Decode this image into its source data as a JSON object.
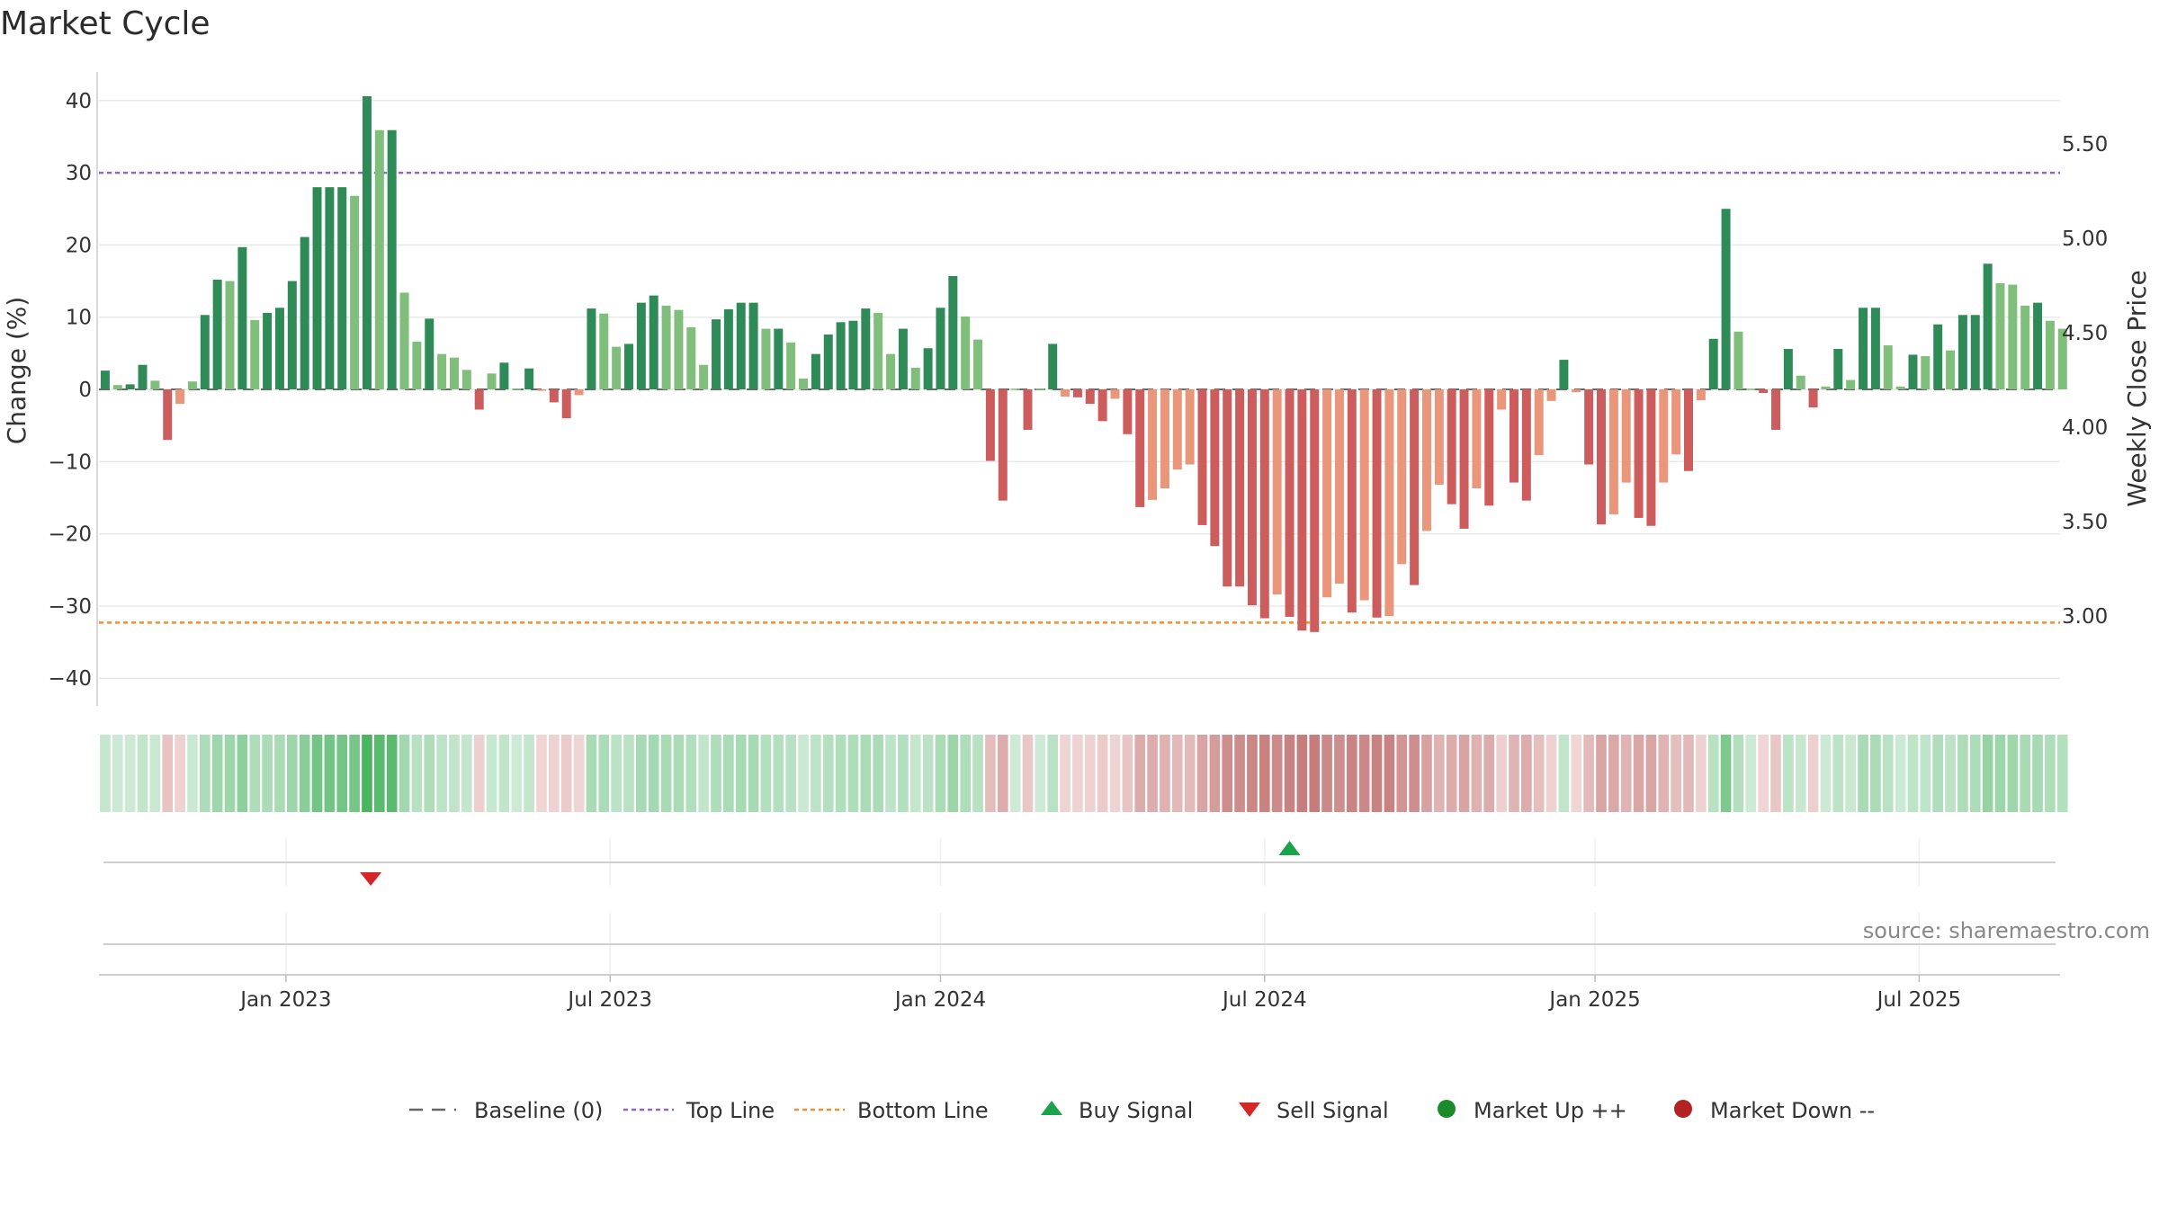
{
  "page": {
    "title": "Market Cycle",
    "source": "source: sharemaestro.com"
  },
  "chart_data": {
    "type": "bar",
    "title": "Market Cycle",
    "ylabel": "Change (%)",
    "y2label": "Weekly Close Price",
    "ylim": [
      -44,
      44
    ],
    "y_ticks": [
      40,
      30,
      20,
      10,
      0,
      -10,
      -20,
      -30,
      -40
    ],
    "y_tick_labels": [
      "40",
      "30",
      "20",
      "10",
      "0",
      "−10",
      "−20",
      "−30",
      "−40"
    ],
    "y2_ticks": [
      5.5,
      5.0,
      4.5,
      4.0,
      3.5,
      3.0
    ],
    "y2_tick_labels": [
      "5.50",
      "5.00",
      "4.50",
      "4.00",
      "3.50",
      "3.00"
    ],
    "top_line": 30,
    "bottom_line": -32.3,
    "x_start_week_offset": 0,
    "x_tick_labels": [
      "Jan 2023",
      "Jul 2023",
      "Jan 2024",
      "Jul 2024",
      "Jan 2025",
      "Jul 2025"
    ],
    "x_tick_weeks": [
      15,
      41,
      67.5,
      93.5,
      120,
      146
    ],
    "x_range_weeks": [
      0,
      157.3
    ],
    "values": [
      2.6,
      0.6,
      0.7,
      3.4,
      1.2,
      -7.0,
      -2.0,
      1.1,
      10.3,
      15.2,
      15.0,
      19.7,
      9.6,
      10.6,
      11.3,
      15.0,
      21.1,
      28.0,
      28.0,
      28.0,
      26.8,
      40.6,
      35.9,
      35.9,
      13.4,
      6.6,
      9.8,
      4.9,
      4.4,
      2.7,
      -2.8,
      2.2,
      3.7,
      0.1,
      2.9,
      -0.2,
      -1.8,
      -4.0,
      -0.8,
      11.2,
      10.5,
      5.9,
      6.3,
      12.0,
      13.0,
      11.6,
      11.0,
      8.6,
      3.4,
      9.7,
      11.1,
      12.0,
      12.0,
      8.4,
      8.4,
      6.5,
      1.5,
      4.9,
      7.6,
      9.3,
      9.5,
      11.2,
      10.6,
      4.9,
      8.4,
      3.0,
      5.7,
      11.3,
      15.7,
      10.1,
      6.9,
      -9.9,
      -15.4,
      0.1,
      -5.6,
      0.1,
      6.3,
      -1.0,
      -1.1,
      -2.0,
      -4.4,
      -1.3,
      -6.2,
      -16.3,
      -15.3,
      -13.7,
      -11.1,
      -10.4,
      -18.8,
      -21.7,
      -27.3,
      -27.3,
      -29.9,
      -31.7,
      -28.4,
      -31.5,
      -33.4,
      -33.6,
      -28.8,
      -26.9,
      -30.9,
      -29.2,
      -31.6,
      -31.4,
      -24.2,
      -27.1,
      -19.6,
      -13.2,
      -15.9,
      -19.3,
      -13.7,
      -16.1,
      -2.8,
      -12.9,
      -15.4,
      -9.1,
      -1.6,
      4.1,
      -0.4,
      -10.4,
      -18.7,
      -17.3,
      -12.9,
      -17.8,
      -18.9,
      -12.9,
      -9.0,
      -11.3,
      -1.5,
      7.0,
      25.0,
      8.0,
      0.1,
      -0.5,
      -5.6,
      5.6,
      1.9,
      -2.5,
      0.4,
      5.6,
      1.3,
      11.3,
      11.3,
      6.1,
      0.4,
      4.8,
      4.6,
      9.0,
      5.4,
      10.3,
      10.3,
      17.4,
      14.7,
      14.5,
      11.6,
      12.0,
      9.5,
      8.4
    ],
    "signals": [
      {
        "type": "sell",
        "week": 21.8,
        "label": "Sell Signal"
      },
      {
        "type": "buy",
        "week": 95.5,
        "label": "Buy Signal"
      }
    ],
    "legend": [
      {
        "key": "baseline",
        "label": "Baseline (0)",
        "color": "#666666"
      },
      {
        "key": "top",
        "label": "Top Line",
        "color": "#9467bd"
      },
      {
        "key": "bottom",
        "label": "Bottom Line",
        "color": "#f28e2b"
      },
      {
        "key": "buy",
        "label": "Buy Signal",
        "color": "#1aa34a"
      },
      {
        "key": "sell",
        "label": "Sell Signal",
        "color": "#d62728"
      },
      {
        "key": "up",
        "label": "Market Up ++",
        "color": "#1a8a2a"
      },
      {
        "key": "down",
        "label": "Market Down --",
        "color": "#b22222"
      }
    ],
    "legend_position": "bottom-center",
    "grid": true
  }
}
